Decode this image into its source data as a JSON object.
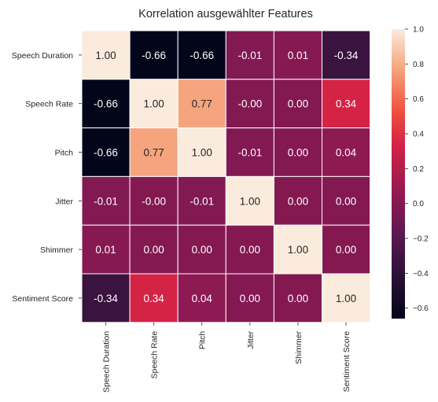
{
  "chart_data": {
    "type": "heatmap",
    "title": "Korrelation ausgewählter Features",
    "xlabel": "",
    "ylabel": "",
    "row_labels": [
      "Speech Duration",
      "Speech Rate",
      "Pitch",
      "Jitter",
      "Shimmer",
      "Sentiment Score"
    ],
    "col_labels": [
      "Speech Duration",
      "Speech Rate",
      "Pitch",
      "Jitter",
      "Shimmer",
      "Sentiment Score"
    ],
    "values": [
      [
        1.0,
        -0.66,
        -0.66,
        -0.01,
        0.01,
        -0.34
      ],
      [
        -0.66,
        1.0,
        0.77,
        -0.0,
        0.0,
        0.34
      ],
      [
        -0.66,
        0.77,
        1.0,
        -0.01,
        0.0,
        0.04
      ],
      [
        -0.01,
        -0.0,
        -0.01,
        1.0,
        0.0,
        0.0
      ],
      [
        0.01,
        0.0,
        0.0,
        0.0,
        1.0,
        0.0
      ],
      [
        -0.34,
        0.34,
        0.04,
        0.0,
        0.0,
        1.0
      ]
    ],
    "cell_labels": [
      [
        "1.00",
        "-0.66",
        "-0.66",
        "-0.01",
        "0.01",
        "-0.34"
      ],
      [
        "-0.66",
        "1.00",
        "0.77",
        "-0.00",
        "0.00",
        "0.34"
      ],
      [
        "-0.66",
        "0.77",
        "1.00",
        "-0.01",
        "0.00",
        "0.04"
      ],
      [
        "-0.01",
        "-0.00",
        "-0.01",
        "1.00",
        "0.00",
        "0.00"
      ],
      [
        "0.01",
        "0.00",
        "0.00",
        "0.00",
        "1.00",
        "0.00"
      ],
      [
        "-0.34",
        "0.34",
        "0.04",
        "0.00",
        "0.00",
        "1.00"
      ]
    ],
    "vmin": -0.66,
    "vmax": 1.0,
    "colormap": "rocket",
    "colorbar_ticks": [
      1.0,
      0.8,
      0.6,
      0.4,
      0.2,
      0.0,
      -0.2,
      -0.4,
      -0.6
    ],
    "colorbar_tick_labels": [
      "1.0",
      "0.8",
      "0.6",
      "0.4",
      "0.2",
      "0.0",
      "−0.2",
      "−0.4",
      "−0.6"
    ]
  }
}
